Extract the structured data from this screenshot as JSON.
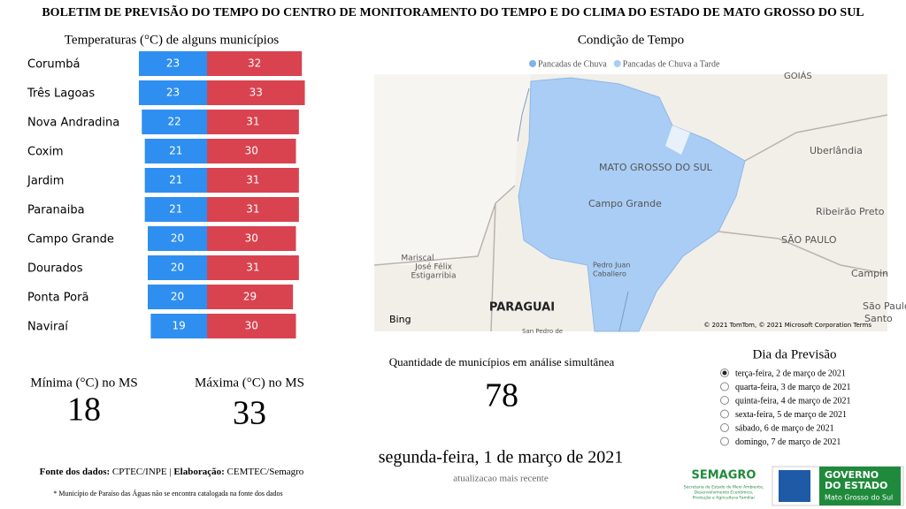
{
  "header": {
    "title": "BOLETIM DE PREVISÃO DO TEMPO DO CENTRO DE MONITORAMENTO DO TEMPO E DO CLIMA DO ESTADO DE MATO GROSSO DO SUL"
  },
  "temperatures": {
    "title": "Temperaturas (°C) de alguns municípios",
    "min_color": "#2f8ff0",
    "max_color": "#d9434f",
    "rows": [
      {
        "name": "Corumbá",
        "min": 23,
        "max": 32
      },
      {
        "name": "Três Lagoas",
        "min": 23,
        "max": 33
      },
      {
        "name": "Nova Andradina",
        "min": 22,
        "max": 31
      },
      {
        "name": "Coxim",
        "min": 21,
        "max": 30
      },
      {
        "name": "Jardim",
        "min": 21,
        "max": 31
      },
      {
        "name": "Paranaiba",
        "min": 21,
        "max": 31
      },
      {
        "name": "Campo Grande",
        "min": 20,
        "max": 30
      },
      {
        "name": "Dourados",
        "min": 20,
        "max": 31
      },
      {
        "name": "Ponta Porã",
        "min": 20,
        "max": 29
      },
      {
        "name": "Naviraí",
        "min": 19,
        "max": 30
      }
    ]
  },
  "weather": {
    "title": "Condição de Tempo",
    "legend": [
      {
        "name": "Pancadas de Chuva",
        "color": "#7fb2ea"
      },
      {
        "name": "Pancadas de Chuva a Tarde",
        "color": "#a9cdf4"
      }
    ],
    "map_labels": [
      "GOIÁS",
      "MATO GROSSO DO SUL",
      "Campo Grande",
      "Uberlândia",
      "Ribeirão Preto",
      "SÃO PAULO",
      "Campin",
      "São Paulo",
      "Santo",
      "Mariscal",
      "José Félix",
      "Estigarribia",
      "Pedro Juan",
      "Caballero",
      "PARAGUAI",
      "San Pedro de"
    ],
    "provider": "Bing",
    "attribution": "© 2021 TomTom, © 2021 Microsoft Corporation  Terms"
  },
  "summary": {
    "min_label": "Mínima (°C) no MS",
    "min": 18,
    "max_label": "Máxima (°C) no MS",
    "max": 33
  },
  "count": {
    "label": "Quantidade de municípios em análise simultânea",
    "value": 78
  },
  "date": {
    "value": "segunda-feira, 1 de março de 2021",
    "note": "atualizacao mais recente"
  },
  "forecast": {
    "title": "Dia da Previsão",
    "selected": 0,
    "options": [
      "terça-feira, 2 de março de 2021",
      "quarta-feira, 3 de março de 2021",
      "quinta-feira, 4 de março de 2021",
      "sexta-feira, 5 de março de 2021",
      "sábado, 6 de março de 2021",
      "domingo, 7 de março de 2021"
    ]
  },
  "footer": {
    "sources": [
      "Fonte dos dados:",
      "CPTEC/INPE |",
      "Elaboração:",
      "CEMTEC/Semagro"
    ],
    "note": "* Município de Paraíso das Águas não se encontra catalogada na fonte dos dados"
  },
  "logos": {
    "semagro": "SEMAGRO",
    "semagro_sub": [
      "Secretaria de Estado de Meio Ambiente,",
      "Desenvolvimento Econômico,",
      "Produção e Agricultura Familiar"
    ],
    "gov": [
      "GOVERNO",
      "DO ESTADO",
      "Mato Grosso do Sul"
    ]
  }
}
